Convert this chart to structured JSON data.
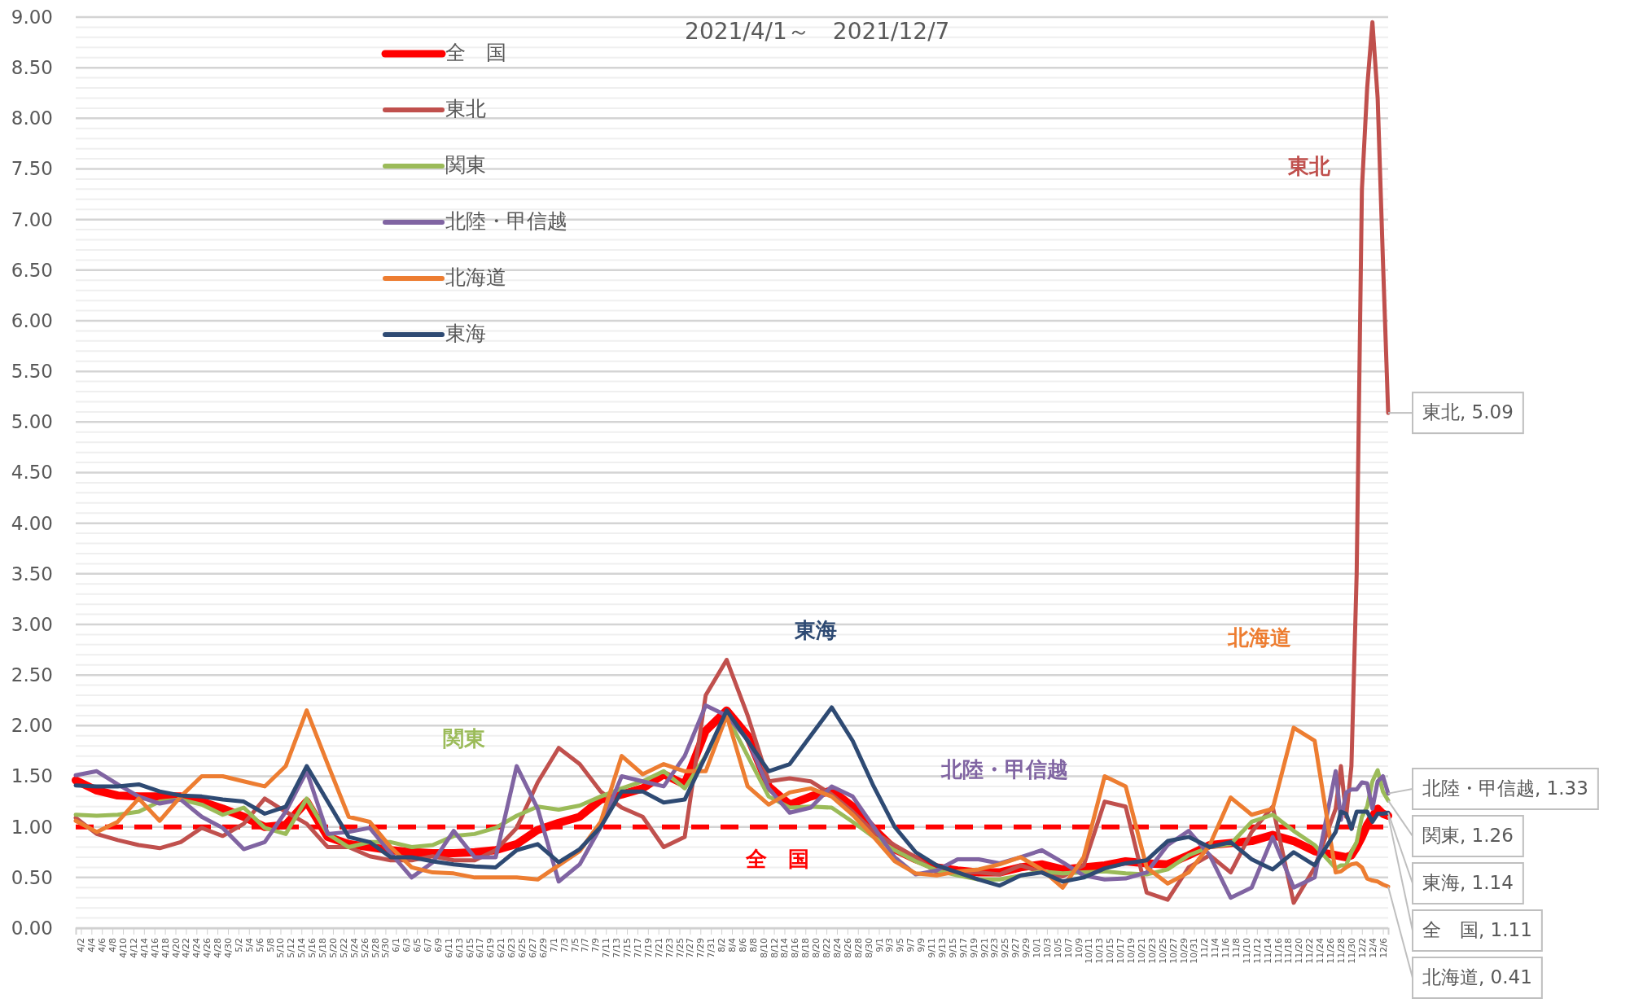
{
  "chart_data": {
    "type": "line",
    "title": "2021/4/1～　2021/12/7",
    "x": [
      "2021-04-01",
      "2021-04-05",
      "2021-04-09",
      "2021-04-13",
      "2021-04-17",
      "2021-04-21",
      "2021-04-25",
      "2021-04-29",
      "2021-05-03",
      "2021-05-07",
      "2021-05-11",
      "2021-05-15",
      "2021-05-19",
      "2021-05-23",
      "2021-05-27",
      "2021-05-31",
      "2021-06-04",
      "2021-06-08",
      "2021-06-12",
      "2021-06-16",
      "2021-06-20",
      "2021-06-24",
      "2021-06-28",
      "2021-07-02",
      "2021-07-06",
      "2021-07-10",
      "2021-07-14",
      "2021-07-18",
      "2021-07-22",
      "2021-07-26",
      "2021-07-30",
      "2021-08-03",
      "2021-08-07",
      "2021-08-11",
      "2021-08-15",
      "2021-08-19",
      "2021-08-23",
      "2021-08-27",
      "2021-08-31",
      "2021-09-04",
      "2021-09-08",
      "2021-09-12",
      "2021-09-16",
      "2021-09-20",
      "2021-09-24",
      "2021-09-28",
      "2021-10-02",
      "2021-10-06",
      "2021-10-10",
      "2021-10-14",
      "2021-10-18",
      "2021-10-22",
      "2021-10-26",
      "2021-10-30",
      "2021-11-03",
      "2021-11-07",
      "2021-11-11",
      "2021-11-15",
      "2021-11-19",
      "2021-11-23",
      "2021-11-27",
      "2021-11-28",
      "2021-11-29",
      "2021-11-30",
      "2021-12-01",
      "2021-12-02",
      "2021-12-03",
      "2021-12-04",
      "2021-12-05",
      "2021-12-06",
      "2021-12-07"
    ],
    "series": [
      {
        "name": "全　国",
        "color": "#ff0000",
        "values": [
          1.46,
          1.36,
          1.31,
          1.3,
          1.3,
          1.3,
          1.25,
          1.18,
          1.1,
          1.0,
          1.02,
          1.25,
          0.9,
          0.83,
          0.8,
          0.77,
          0.75,
          0.74,
          0.74,
          0.75,
          0.77,
          0.83,
          0.97,
          1.04,
          1.1,
          1.27,
          1.32,
          1.38,
          1.52,
          1.42,
          1.95,
          2.15,
          1.9,
          1.4,
          1.22,
          1.3,
          1.36,
          1.2,
          0.98,
          0.78,
          0.68,
          0.6,
          0.57,
          0.55,
          0.55,
          0.6,
          0.63,
          0.58,
          0.6,
          0.62,
          0.66,
          0.64,
          0.63,
          0.72,
          0.82,
          0.84,
          0.86,
          0.92,
          0.86,
          0.76,
          0.72,
          0.71,
          0.7,
          0.72,
          0.8,
          0.9,
          1.02,
          1.1,
          1.18,
          1.13,
          1.11
        ]
      },
      {
        "name": "東北",
        "color": "#c0504d",
        "values": [
          1.09,
          0.93,
          0.87,
          0.82,
          0.79,
          0.85,
          0.99,
          0.91,
          1.03,
          1.28,
          1.15,
          1.03,
          0.8,
          0.8,
          0.71,
          0.67,
          0.67,
          0.71,
          0.67,
          0.67,
          0.77,
          0.99,
          1.44,
          1.78,
          1.62,
          1.35,
          1.19,
          1.1,
          0.8,
          0.9,
          2.3,
          2.65,
          2.1,
          1.45,
          1.48,
          1.45,
          1.32,
          1.15,
          0.95,
          0.82,
          0.7,
          0.55,
          0.55,
          0.55,
          0.53,
          0.62,
          0.55,
          0.51,
          0.62,
          1.25,
          1.2,
          0.35,
          0.28,
          0.6,
          0.72,
          0.55,
          0.95,
          1.2,
          0.25,
          0.6,
          1.18,
          1.6,
          1.1,
          1.6,
          3.5,
          7.3,
          8.3,
          8.95,
          8.2,
          6.6,
          5.09
        ]
      },
      {
        "name": "関東",
        "color": "#9bbb59",
        "values": [
          1.12,
          1.11,
          1.12,
          1.15,
          1.25,
          1.27,
          1.22,
          1.12,
          1.19,
          0.99,
          0.93,
          1.28,
          0.93,
          0.8,
          0.85,
          0.85,
          0.8,
          0.82,
          0.91,
          0.93,
          0.99,
          1.11,
          1.2,
          1.17,
          1.21,
          1.3,
          1.38,
          1.45,
          1.55,
          1.38,
          1.7,
          2.1,
          1.7,
          1.3,
          1.19,
          1.2,
          1.19,
          1.05,
          0.9,
          0.77,
          0.66,
          0.57,
          0.52,
          0.48,
          0.48,
          0.52,
          0.56,
          0.54,
          0.55,
          0.56,
          0.54,
          0.53,
          0.58,
          0.72,
          0.8,
          0.83,
          1.05,
          1.12,
          0.96,
          0.82,
          0.59,
          0.62,
          0.62,
          0.75,
          0.85,
          1.1,
          1.2,
          1.45,
          1.56,
          1.35,
          1.26
        ]
      },
      {
        "name": "北陸・甲信越",
        "color": "#8064a2",
        "values": [
          1.51,
          1.55,
          1.42,
          1.3,
          1.23,
          1.27,
          1.1,
          0.99,
          0.78,
          0.85,
          1.15,
          1.55,
          0.93,
          0.95,
          0.99,
          0.74,
          0.5,
          0.65,
          0.96,
          0.7,
          0.7,
          1.6,
          1.18,
          0.46,
          0.63,
          1.0,
          1.5,
          1.45,
          1.4,
          1.7,
          2.2,
          2.1,
          1.86,
          1.38,
          1.14,
          1.19,
          1.4,
          1.3,
          1.0,
          0.7,
          0.53,
          0.57,
          0.68,
          0.68,
          0.64,
          0.7,
          0.77,
          0.65,
          0.52,
          0.48,
          0.49,
          0.55,
          0.82,
          0.96,
          0.72,
          0.3,
          0.4,
          0.9,
          0.4,
          0.5,
          1.55,
          1.07,
          1.34,
          1.37,
          1.37,
          1.44,
          1.43,
          1.18,
          1.45,
          1.5,
          1.33
        ]
      },
      {
        "name": "北海道",
        "color": "#ed7d31",
        "values": [
          1.06,
          0.95,
          1.05,
          1.28,
          1.06,
          1.3,
          1.5,
          1.5,
          1.45,
          1.4,
          1.6,
          2.15,
          1.62,
          1.1,
          1.05,
          0.8,
          0.6,
          0.55,
          0.54,
          0.5,
          0.5,
          0.5,
          0.48,
          0.62,
          0.76,
          1.05,
          1.7,
          1.52,
          1.62,
          1.55,
          1.55,
          2.1,
          1.4,
          1.22,
          1.34,
          1.38,
          1.3,
          1.12,
          0.9,
          0.66,
          0.54,
          0.52,
          0.56,
          0.58,
          0.63,
          0.7,
          0.58,
          0.4,
          0.7,
          1.5,
          1.4,
          0.6,
          0.44,
          0.55,
          0.82,
          1.29,
          1.12,
          1.18,
          1.98,
          1.85,
          0.55,
          0.56,
          0.6,
          0.63,
          0.64,
          0.6,
          0.49,
          0.47,
          0.46,
          0.43,
          0.41
        ]
      },
      {
        "name": "東海",
        "color": "#2e4a73",
        "values": [
          1.41,
          1.4,
          1.4,
          1.42,
          1.35,
          1.31,
          1.3,
          1.27,
          1.25,
          1.13,
          1.2,
          1.6,
          1.25,
          0.9,
          0.85,
          0.7,
          0.7,
          0.66,
          0.63,
          0.61,
          0.6,
          0.77,
          0.83,
          0.65,
          0.78,
          1.0,
          1.35,
          1.35,
          1.24,
          1.27,
          1.7,
          2.15,
          1.85,
          1.55,
          1.62,
          1.9,
          2.18,
          1.85,
          1.4,
          1.0,
          0.75,
          0.62,
          0.55,
          0.48,
          0.42,
          0.52,
          0.55,
          0.46,
          0.5,
          0.59,
          0.64,
          0.67,
          0.86,
          0.9,
          0.8,
          0.85,
          0.68,
          0.58,
          0.75,
          0.62,
          0.95,
          1.15,
          1.13,
          0.98,
          1.15,
          1.15,
          1.15,
          1.05,
          1.13,
          1.13,
          1.14
        ]
      }
    ],
    "xlim": [
      "2021-04-01",
      "2021-12-07"
    ],
    "xticks": [
      {
        "value": "2021-04-02",
        "label": "4/2"
      },
      {
        "value": "2021-04-04",
        "label": "4/4"
      },
      {
        "value": "2021-04-06",
        "label": "4/6"
      },
      {
        "value": "2021-04-08",
        "label": "4/8"
      },
      {
        "value": "2021-04-10",
        "label": "4/10"
      },
      {
        "value": "2021-04-12",
        "label": "4/12"
      },
      {
        "value": "2021-04-14",
        "label": "4/14"
      },
      {
        "value": "2021-04-16",
        "label": "4/16"
      },
      {
        "value": "2021-04-18",
        "label": "4/18"
      },
      {
        "value": "2021-04-20",
        "label": "4/20"
      },
      {
        "value": "2021-04-22",
        "label": "4/22"
      },
      {
        "value": "2021-04-24",
        "label": "4/24"
      },
      {
        "value": "2021-04-26",
        "label": "4/26"
      },
      {
        "value": "2021-04-28",
        "label": "4/28"
      },
      {
        "value": "2021-04-30",
        "label": "4/30"
      },
      {
        "value": "2021-05-02",
        "label": "5/2"
      },
      {
        "value": "2021-05-04",
        "label": "5/4"
      },
      {
        "value": "2021-05-06",
        "label": "5/6"
      },
      {
        "value": "2021-05-08",
        "label": "5/8"
      },
      {
        "value": "2021-05-10",
        "label": "5/10"
      },
      {
        "value": "2021-05-12",
        "label": "5/12"
      },
      {
        "value": "2021-05-14",
        "label": "5/14"
      },
      {
        "value": "2021-05-16",
        "label": "5/16"
      },
      {
        "value": "2021-05-18",
        "label": "5/18"
      },
      {
        "value": "2021-05-20",
        "label": "5/20"
      },
      {
        "value": "2021-05-22",
        "label": "5/22"
      },
      {
        "value": "2021-05-24",
        "label": "5/24"
      },
      {
        "value": "2021-05-26",
        "label": "5/26"
      },
      {
        "value": "2021-05-28",
        "label": "5/28"
      },
      {
        "value": "2021-05-30",
        "label": "5/30"
      },
      {
        "value": "2021-06-01",
        "label": "6/1"
      },
      {
        "value": "2021-06-03",
        "label": "6/3"
      },
      {
        "value": "2021-06-05",
        "label": "6/5"
      },
      {
        "value": "2021-06-07",
        "label": "6/7"
      },
      {
        "value": "2021-06-09",
        "label": "6/9"
      },
      {
        "value": "2021-06-11",
        "label": "6/11"
      },
      {
        "value": "2021-06-13",
        "label": "6/13"
      },
      {
        "value": "2021-06-15",
        "label": "6/15"
      },
      {
        "value": "2021-06-17",
        "label": "6/17"
      },
      {
        "value": "2021-06-19",
        "label": "6/19"
      },
      {
        "value": "2021-06-21",
        "label": "6/21"
      },
      {
        "value": "2021-06-23",
        "label": "6/23"
      },
      {
        "value": "2021-06-25",
        "label": "6/25"
      },
      {
        "value": "2021-06-27",
        "label": "6/27"
      },
      {
        "value": "2021-06-29",
        "label": "6/29"
      },
      {
        "value": "2021-07-01",
        "label": "7/1"
      },
      {
        "value": "2021-07-03",
        "label": "7/3"
      },
      {
        "value": "2021-07-05",
        "label": "7/5"
      },
      {
        "value": "2021-07-07",
        "label": "7/7"
      },
      {
        "value": "2021-07-09",
        "label": "7/9"
      },
      {
        "value": "2021-07-11",
        "label": "7/11"
      },
      {
        "value": "2021-07-13",
        "label": "7/13"
      },
      {
        "value": "2021-07-15",
        "label": "7/15"
      },
      {
        "value": "2021-07-17",
        "label": "7/17"
      },
      {
        "value": "2021-07-19",
        "label": "7/19"
      },
      {
        "value": "2021-07-21",
        "label": "7/21"
      },
      {
        "value": "2021-07-23",
        "label": "7/23"
      },
      {
        "value": "2021-07-25",
        "label": "7/25"
      },
      {
        "value": "2021-07-27",
        "label": "7/27"
      },
      {
        "value": "2021-07-29",
        "label": "7/29"
      },
      {
        "value": "2021-07-31",
        "label": "7/31"
      },
      {
        "value": "2021-08-02",
        "label": "8/2"
      },
      {
        "value": "2021-08-04",
        "label": "8/4"
      },
      {
        "value": "2021-08-06",
        "label": "8/6"
      },
      {
        "value": "2021-08-08",
        "label": "8/8"
      },
      {
        "value": "2021-08-10",
        "label": "8/10"
      },
      {
        "value": "2021-08-12",
        "label": "8/12"
      },
      {
        "value": "2021-08-14",
        "label": "8/14"
      },
      {
        "value": "2021-08-16",
        "label": "8/16"
      },
      {
        "value": "2021-08-18",
        "label": "8/18"
      },
      {
        "value": "2021-08-20",
        "label": "8/20"
      },
      {
        "value": "2021-08-22",
        "label": "8/22"
      },
      {
        "value": "2021-08-24",
        "label": "8/24"
      },
      {
        "value": "2021-08-26",
        "label": "8/26"
      },
      {
        "value": "2021-08-28",
        "label": "8/28"
      },
      {
        "value": "2021-08-30",
        "label": "8/30"
      },
      {
        "value": "2021-09-01",
        "label": "9/1"
      },
      {
        "value": "2021-09-03",
        "label": "9/3"
      },
      {
        "value": "2021-09-05",
        "label": "9/5"
      },
      {
        "value": "2021-09-07",
        "label": "9/7"
      },
      {
        "value": "2021-09-09",
        "label": "9/9"
      },
      {
        "value": "2021-09-11",
        "label": "9/11"
      },
      {
        "value": "2021-09-13",
        "label": "9/13"
      },
      {
        "value": "2021-09-15",
        "label": "9/15"
      },
      {
        "value": "2021-09-17",
        "label": "9/17"
      },
      {
        "value": "2021-09-19",
        "label": "9/19"
      },
      {
        "value": "2021-09-21",
        "label": "9/21"
      },
      {
        "value": "2021-09-23",
        "label": "9/23"
      },
      {
        "value": "2021-09-25",
        "label": "9/25"
      },
      {
        "value": "2021-09-27",
        "label": "9/27"
      },
      {
        "value": "2021-09-29",
        "label": "9/29"
      },
      {
        "value": "2021-10-01",
        "label": "10/1"
      },
      {
        "value": "2021-10-03",
        "label": "10/3"
      },
      {
        "value": "2021-10-05",
        "label": "10/5"
      },
      {
        "value": "2021-10-07",
        "label": "10/7"
      },
      {
        "value": "2021-10-09",
        "label": "10/9"
      },
      {
        "value": "2021-10-11",
        "label": "10/11"
      },
      {
        "value": "2021-10-13",
        "label": "10/13"
      },
      {
        "value": "2021-10-15",
        "label": "10/15"
      },
      {
        "value": "2021-10-17",
        "label": "10/17"
      },
      {
        "value": "2021-10-19",
        "label": "10/19"
      },
      {
        "value": "2021-10-21",
        "label": "10/21"
      },
      {
        "value": "2021-10-23",
        "label": "10/23"
      },
      {
        "value": "2021-10-25",
        "label": "10/25"
      },
      {
        "value": "2021-10-27",
        "label": "10/27"
      },
      {
        "value": "2021-10-29",
        "label": "10/29"
      },
      {
        "value": "2021-10-31",
        "label": "10/31"
      },
      {
        "value": "2021-11-02",
        "label": "11/2"
      },
      {
        "value": "2021-11-04",
        "label": "11/4"
      },
      {
        "value": "2021-11-06",
        "label": "11/6"
      },
      {
        "value": "2021-11-08",
        "label": "11/8"
      },
      {
        "value": "2021-11-10",
        "label": "11/10"
      },
      {
        "value": "2021-11-12",
        "label": "11/12"
      },
      {
        "value": "2021-11-14",
        "label": "11/14"
      },
      {
        "value": "2021-11-16",
        "label": "11/16"
      },
      {
        "value": "2021-11-18",
        "label": "11/18"
      },
      {
        "value": "2021-11-20",
        "label": "11/20"
      },
      {
        "value": "2021-11-22",
        "label": "11/22"
      },
      {
        "value": "2021-11-24",
        "label": "11/24"
      },
      {
        "value": "2021-11-26",
        "label": "11/26"
      },
      {
        "value": "2021-11-28",
        "label": "11/28"
      },
      {
        "value": "2021-11-30",
        "label": "11/30"
      },
      {
        "value": "2021-12-02",
        "label": "12/2"
      },
      {
        "value": "2021-12-04",
        "label": "12/4"
      },
      {
        "value": "2021-12-06",
        "label": "12/6"
      }
    ],
    "ylim": [
      0,
      9
    ],
    "yticks": [
      {
        "value": 0,
        "label": "0.00"
      },
      {
        "value": 0.1,
        "label": null
      },
      {
        "value": 0.2,
        "label": null
      },
      {
        "value": 0.3,
        "label": null
      },
      {
        "value": 0.4,
        "label": null
      },
      {
        "value": 0.5,
        "label": "0.50"
      },
      {
        "value": 0.6,
        "label": null
      },
      {
        "value": 0.7,
        "label": null
      },
      {
        "value": 0.8,
        "label": null
      },
      {
        "value": 0.9,
        "label": null
      },
      {
        "value": 1,
        "label": "1.00"
      },
      {
        "value": 1.1,
        "label": null
      },
      {
        "value": 1.2,
        "label": null
      },
      {
        "value": 1.3,
        "label": null
      },
      {
        "value": 1.4,
        "label": null
      },
      {
        "value": 1.5,
        "label": "1.50"
      },
      {
        "value": 1.6,
        "label": null
      },
      {
        "value": 1.7,
        "label": null
      },
      {
        "value": 1.8,
        "label": null
      },
      {
        "value": 1.9,
        "label": null
      },
      {
        "value": 2,
        "label": "2.00"
      },
      {
        "value": 2.1,
        "label": null
      },
      {
        "value": 2.2,
        "label": null
      },
      {
        "value": 2.3,
        "label": null
      },
      {
        "value": 2.4,
        "label": null
      },
      {
        "value": 2.5,
        "label": "2.50"
      },
      {
        "value": 2.6,
        "label": null
      },
      {
        "value": 2.7,
        "label": null
      },
      {
        "value": 2.8,
        "label": null
      },
      {
        "value": 2.9,
        "label": null
      },
      {
        "value": 3,
        "label": "3.00"
      },
      {
        "value": 3.1,
        "label": null
      },
      {
        "value": 3.2,
        "label": null
      },
      {
        "value": 3.3,
        "label": null
      },
      {
        "value": 3.4,
        "label": null
      },
      {
        "value": 3.5,
        "label": "3.50"
      },
      {
        "value": 3.6,
        "label": null
      },
      {
        "value": 3.7,
        "label": null
      },
      {
        "value": 3.8,
        "label": null
      },
      {
        "value": 3.9,
        "label": null
      },
      {
        "value": 4,
        "label": "4.00"
      },
      {
        "value": 4.1,
        "label": null
      },
      {
        "value": 4.2,
        "label": null
      },
      {
        "value": 4.3,
        "label": null
      },
      {
        "value": 4.4,
        "label": null
      },
      {
        "value": 4.5,
        "label": "4.50"
      },
      {
        "value": 4.6,
        "label": null
      },
      {
        "value": 4.7,
        "label": null
      },
      {
        "value": 4.8,
        "label": null
      },
      {
        "value": 4.9,
        "label": null
      },
      {
        "value": 5,
        "label": "5.00"
      },
      {
        "value": 5.1,
        "label": null
      },
      {
        "value": 5.2,
        "label": null
      },
      {
        "value": 5.3,
        "label": null
      },
      {
        "value": 5.4,
        "label": null
      },
      {
        "value": 5.5,
        "label": "5.50"
      },
      {
        "value": 5.6,
        "label": null
      },
      {
        "value": 5.7,
        "label": null
      },
      {
        "value": 5.8,
        "label": null
      },
      {
        "value": 5.9,
        "label": null
      },
      {
        "value": 6,
        "label": "6.00"
      },
      {
        "value": 6.1,
        "label": null
      },
      {
        "value": 6.2,
        "label": null
      },
      {
        "value": 6.3,
        "label": null
      },
      {
        "value": 6.4,
        "label": null
      },
      {
        "value": 6.5,
        "label": "6.50"
      },
      {
        "value": 6.6,
        "label": null
      },
      {
        "value": 6.7,
        "label": null
      },
      {
        "value": 6.8,
        "label": null
      },
      {
        "value": 6.9,
        "label": null
      },
      {
        "value": 7,
        "label": "7.00"
      },
      {
        "value": 7.1,
        "label": null
      },
      {
        "value": 7.2,
        "label": null
      },
      {
        "value": 7.3,
        "label": null
      },
      {
        "value": 7.4,
        "label": null
      },
      {
        "value": 7.5,
        "label": "7.50"
      },
      {
        "value": 7.6,
        "label": null
      },
      {
        "value": 7.7,
        "label": null
      },
      {
        "value": 7.8,
        "label": null
      },
      {
        "value": 7.9,
        "label": null
      },
      {
        "value": 8,
        "label": "8.00"
      },
      {
        "value": 8.1,
        "label": null
      },
      {
        "value": 8.2,
        "label": null
      },
      {
        "value": 8.3,
        "label": null
      },
      {
        "value": 8.4,
        "label": null
      },
      {
        "value": 8.5,
        "label": "8.50"
      },
      {
        "value": 8.6,
        "label": null
      },
      {
        "value": 8.7,
        "label": null
      },
      {
        "value": 8.8,
        "label": null
      },
      {
        "value": 8.9,
        "label": null
      },
      {
        "value": 9,
        "label": "9.00"
      }
    ],
    "grid": "y",
    "legend": "top left",
    "ref_lines": [
      {
        "axis": "y",
        "value": 1,
        "color": "#ff0000",
        "line_style": "dashed"
      }
    ],
    "annotations": [
      "全　国",
      "東北",
      "関東",
      "北陸・甲信越",
      "北海道",
      "東海",
      {
        "text": "東北, 5.09",
        "x": "2021-12-07",
        "y": 5.09
      },
      {
        "text": "北陸・甲信越, 1.33",
        "x": "2021-12-07",
        "y": 1.33
      },
      {
        "text": "関東, 1.26",
        "x": "2021-12-07",
        "y": 1.26
      },
      {
        "text": "全　国, 1.11",
        "x": "2021-12-07",
        "y": 1.11
      },
      {
        "text": "東海, 1.14",
        "x": "2021-12-07",
        "y": 1.14
      },
      {
        "text": "北海道, 0.41",
        "x": "2021-12-07",
        "y": 0.41
      }
    ]
  }
}
